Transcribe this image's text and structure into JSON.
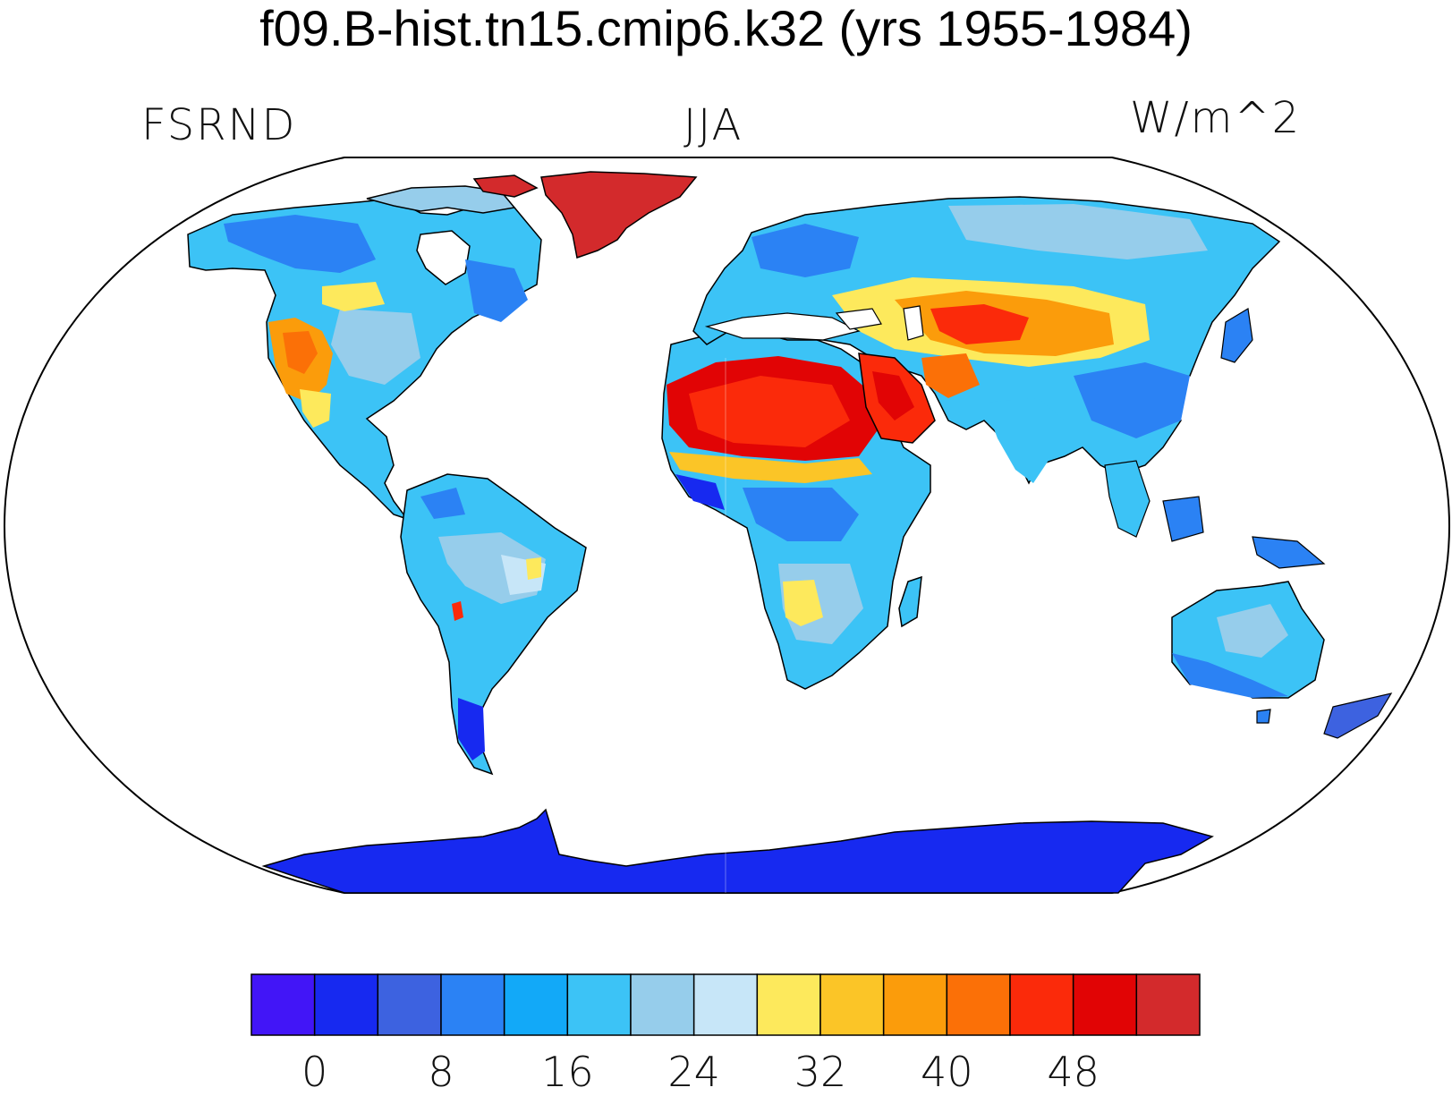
{
  "title": "f09.B-hist.tn15.cmip6.k32 (yrs 1955-1984)",
  "left_label": "FSRND",
  "center_label": "JJA",
  "right_label": "W/m^2",
  "colorbar": {
    "colors": [
      "#4215f7",
      "#1729f0",
      "#3d62e0",
      "#2b82f4",
      "#12a9f8",
      "#3cc3f6",
      "#96cdeb",
      "#c7e6f8",
      "#fde95c",
      "#fbc527",
      "#fb9c0b",
      "#fb7007",
      "#fb2a0a",
      "#e10405",
      "#d32a2c"
    ],
    "tick_labels": [
      "0",
      "8",
      "16",
      "24",
      "32",
      "40",
      "48"
    ],
    "tick_values": [
      0,
      8,
      16,
      24,
      32,
      40,
      48
    ]
  },
  "regions": [
    {
      "name": "greenland",
      "color": "#d32a2c"
    },
    {
      "name": "antarctica",
      "color": "#1729f0"
    },
    {
      "name": "sahara",
      "color": "#e10405"
    },
    {
      "name": "arabia",
      "color": "#fb2a0a"
    },
    {
      "name": "central-asia",
      "color": "#fb9c0b"
    },
    {
      "name": "us-southwest",
      "color": "#fb7007"
    },
    {
      "name": "southern-africa",
      "color": "#fde95c"
    }
  ]
}
